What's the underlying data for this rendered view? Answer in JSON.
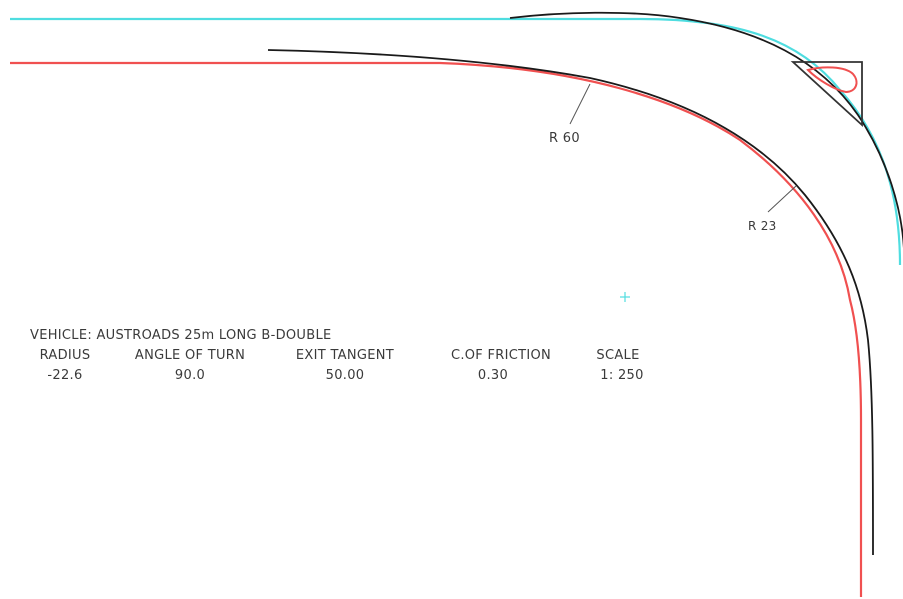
{
  "labels": {
    "radius_outer": "R 60",
    "radius_inner": "R 23"
  },
  "vehicle_line": "VEHICLE:  AUSTROADS 25m LONG B-DOUBLE",
  "table": {
    "headers": [
      "RADIUS",
      "ANGLE OF TURN",
      "EXIT TANGENT",
      "C.OF FRICTION",
      "SCALE"
    ],
    "values": [
      "-22.6",
      "90.0",
      "50.00",
      "0.30",
      "1: 250"
    ]
  },
  "colors": {
    "outer_path": "#4fdde0",
    "inner_path": "#f05050",
    "kerb": "#1a1a1a",
    "marker": "#4fdde0"
  },
  "icons": [
    "triangle-island-icon",
    "crosshair-marker-icon"
  ]
}
